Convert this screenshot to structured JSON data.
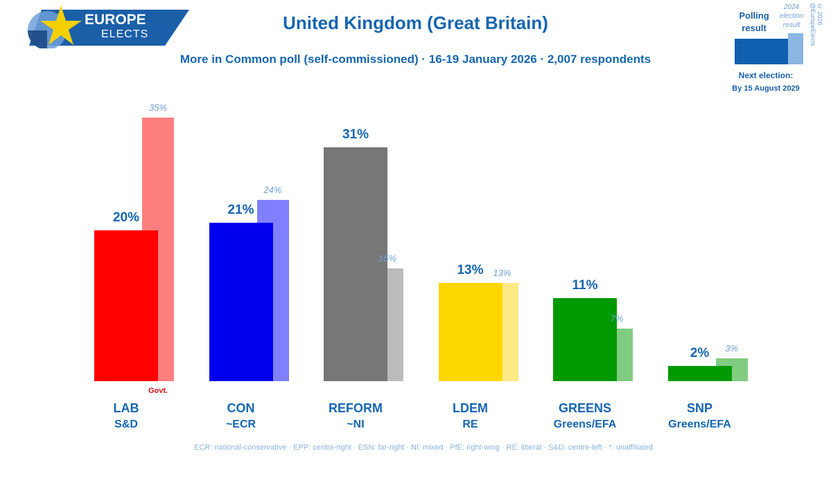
{
  "logo": {
    "word1": "EUROPE",
    "word2": "ELECTS",
    "colors": {
      "banner": "#1a5fa8",
      "star": "#f5d000",
      "globe": "#6fa0d8"
    }
  },
  "header": {
    "title": "United Kingdom (Great Britain)",
    "subtitle": "More in Common poll (self-commissioned) · 16-19 January 2026 · 2,007 respondents"
  },
  "legend": {
    "polling_label": "Polling result",
    "election_label": "2024 election result",
    "copyright": "© 2026 @EuropeElects",
    "next_election_label": "Next election:",
    "next_election_date": "By 15 August 2029",
    "colors": {
      "poll": "#1060b0",
      "election": "#8bb6e3"
    }
  },
  "chart_data": {
    "type": "bar",
    "categories": [
      "LAB",
      "CON",
      "REFORM",
      "LDEM",
      "GREENS",
      "SNP"
    ],
    "groups": [
      "S&D",
      "~ECR",
      "~NI",
      "RE",
      "Greens/EFA",
      "Greens/EFA"
    ],
    "series": [
      {
        "name": "Polling result",
        "values": [
          20,
          21,
          31,
          13,
          11,
          2
        ],
        "labels": [
          "20%",
          "21%",
          "31%",
          "13%",
          "11%",
          "2%"
        ]
      },
      {
        "name": "2024 election result",
        "values": [
          35,
          24,
          15,
          13,
          7,
          3
        ],
        "labels": [
          "35%",
          "24%",
          "15%",
          "13%",
          "7%",
          "3%"
        ]
      }
    ],
    "colors": {
      "poll": [
        "#ff0000",
        "#0000ee",
        "#777777",
        "#ffd700",
        "#009900",
        "#009900"
      ],
      "election": [
        "#ff7f7f",
        "#7f7fff",
        "#bbbbbb",
        "#ffe985",
        "#80cc80",
        "#80cc80"
      ]
    },
    "annotation": "Govt.",
    "annotation_category": "LAB"
  },
  "footnote": "ECR: national-conservative · EPP: centre-right · ESN: far-right · NI: mixed · PfE: right-wing · RE: liberal · S&D: centre-left · *: unaffiliated"
}
